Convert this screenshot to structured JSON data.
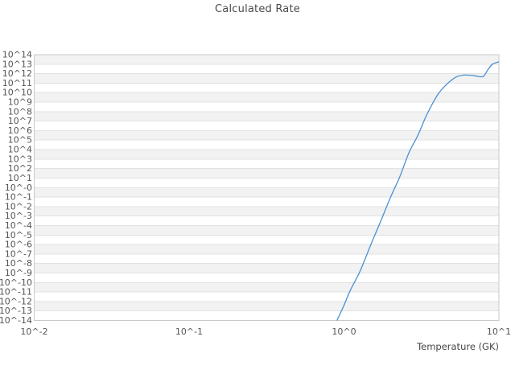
{
  "chart_data": {
    "type": "line",
    "title": "Calculated Rate",
    "xlabel": "Temperature (GK)",
    "ylabel": "",
    "x_scale": "log10",
    "y_scale": "log10",
    "x_range_log10": [
      -2,
      1
    ],
    "y_range_log10": [
      -14,
      14
    ],
    "x_ticks": [
      {
        "log10": -2,
        "label": "10^-2"
      },
      {
        "log10": -1,
        "label": "10^-1"
      },
      {
        "log10": 0,
        "label": "10^0"
      },
      {
        "log10": 1,
        "label": "10^1"
      }
    ],
    "y_ticks": [
      {
        "log10": 14,
        "label": "10^14"
      },
      {
        "log10": 13,
        "label": "10^13"
      },
      {
        "log10": 12,
        "label": "10^12"
      },
      {
        "log10": 11,
        "label": "10^11"
      },
      {
        "log10": 10,
        "label": "10^10"
      },
      {
        "log10": 9,
        "label": "10^9"
      },
      {
        "log10": 8,
        "label": "10^8"
      },
      {
        "log10": 7,
        "label": "10^7"
      },
      {
        "log10": 6,
        "label": "10^6"
      },
      {
        "log10": 5,
        "label": "10^5"
      },
      {
        "log10": 4,
        "label": "10^4"
      },
      {
        "log10": 3,
        "label": "10^3"
      },
      {
        "log10": 2,
        "label": "10^2"
      },
      {
        "log10": 1,
        "label": "10^1"
      },
      {
        "log10": 0,
        "label": "10^-0"
      },
      {
        "log10": -1,
        "label": "10^-1"
      },
      {
        "log10": -2,
        "label": "10^-2"
      },
      {
        "log10": -3,
        "label": "10^-3"
      },
      {
        "log10": -4,
        "label": "10^-4"
      },
      {
        "log10": -5,
        "label": "10^-5"
      },
      {
        "log10": -6,
        "label": "10^-6"
      },
      {
        "log10": -7,
        "label": "10^-7"
      },
      {
        "log10": -8,
        "label": "10^-8"
      },
      {
        "log10": -9,
        "label": "10^-9"
      },
      {
        "log10": -10,
        "label": "10^-10"
      },
      {
        "log10": -11,
        "label": "10^-11"
      },
      {
        "log10": -12,
        "label": "10^-12"
      },
      {
        "log10": -13,
        "label": "10^-13"
      },
      {
        "log10": -14,
        "label": "10^-14"
      }
    ],
    "grid": {
      "style": "alternating-horizontal-bands",
      "band_fill": "#f2f2f2",
      "line_color": "#e2e2e2",
      "border_color": "#c9c9c9"
    },
    "legend": "none",
    "series": [
      {
        "name": "calculated-rate",
        "color": "#4a90d2",
        "T_GK": [
          0.9,
          1.0,
          1.1,
          1.27,
          1.5,
          1.75,
          2.0,
          2.3,
          2.63,
          3.0,
          3.43,
          4.03,
          4.62,
          5.23,
          5.89,
          6.66,
          7.29,
          7.66,
          8.0,
          8.48,
          9.09,
          10.0
        ],
        "log10_rate": [
          -14.0,
          -12.4,
          -10.8,
          -8.8,
          -5.9,
          -3.3,
          -1.0,
          1.2,
          3.7,
          5.5,
          7.7,
          9.8,
          10.9,
          11.6,
          11.85,
          11.83,
          11.72,
          11.67,
          11.75,
          12.4,
          13.0,
          13.25
        ]
      }
    ]
  },
  "text_colors": {
    "title": "#4a4a4a",
    "tick_labels": "#555555",
    "axis_title": "#474747"
  }
}
